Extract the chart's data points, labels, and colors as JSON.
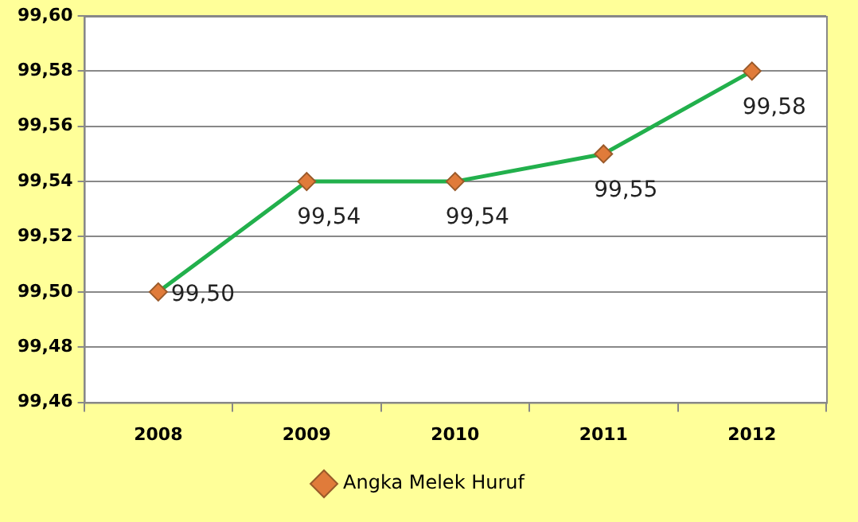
{
  "chart_data": {
    "type": "line",
    "categories": [
      "2008",
      "2009",
      "2010",
      "2011",
      "2012"
    ],
    "series": [
      {
        "name": "Angka Melek Huruf",
        "color": "#22b04c",
        "values": [
          99.5,
          99.54,
          99.54,
          99.55,
          99.58
        ],
        "value_labels": [
          "99,50",
          "99,54",
          "99,54",
          "99,55",
          "99,58"
        ]
      }
    ],
    "ylim": [
      99.46,
      99.6
    ],
    "yticks": [
      {
        "value": 99.46,
        "label": "99,46"
      },
      {
        "value": 99.48,
        "label": "99,48"
      },
      {
        "value": 99.5,
        "label": "99,50"
      },
      {
        "value": 99.52,
        "label": "99,52"
      },
      {
        "value": 99.54,
        "label": "99,54"
      },
      {
        "value": 99.56,
        "label": "99,56"
      },
      {
        "value": 99.58,
        "label": "99,58"
      },
      {
        "value": 99.6,
        "label": "99,60"
      }
    ],
    "grid": "y",
    "legend": "bottom",
    "marker": "diamond",
    "line_style": "solid"
  }
}
